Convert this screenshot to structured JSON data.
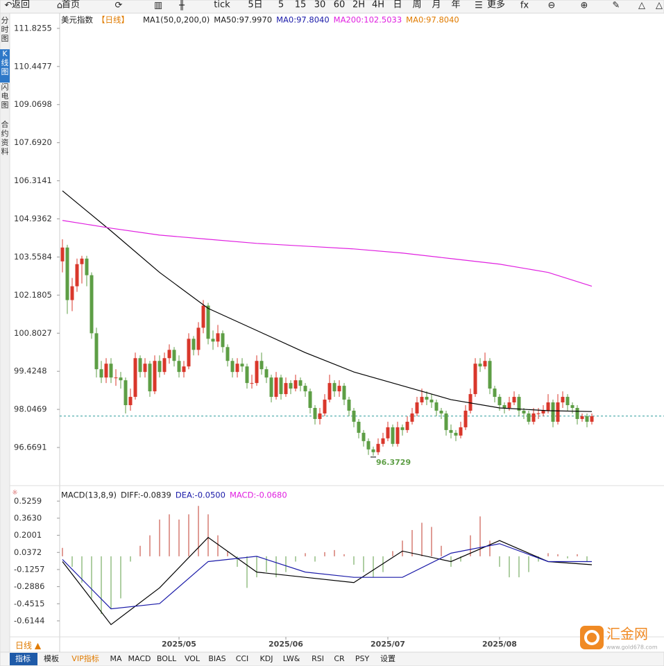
{
  "toolbar": [
    "返回",
    "首页",
    "tick",
    "5日",
    "5",
    "15",
    "30",
    "60",
    "2H",
    "4H",
    "日",
    "周",
    "月",
    "年",
    "更多"
  ],
  "sidebar": [
    "分时图",
    "K线图",
    "闪电图",
    "合约资料"
  ],
  "bottom_tabs": [
    "指标",
    "模板",
    "VIP指标",
    "MA",
    "MACD",
    "BOLL",
    "VOL",
    "BIAS",
    "CCI",
    "KDJ",
    "LW&",
    "RSI",
    "CR",
    "PSY",
    "设置"
  ],
  "period_switch": "日线 ▲",
  "logo": {
    "name": "汇金网",
    "url": "www.gold678.com"
  },
  "chart_data": [
    {
      "type": "candlestick",
      "title": "美元指数",
      "period": "【日线】",
      "indicator": "MA1(50,0,200,0)",
      "legend_texts": [
        "MA50:97.9970",
        "MA0:97.8040",
        "MA200:102.5033",
        "MA0:97.8040"
      ],
      "ylim": [
        95.29,
        112.35
      ],
      "yticks": [
        111.8255,
        110.4477,
        109.0698,
        {
          "value": 107.692,
          "label": "107.6920"
        },
        106.3141,
        104.9362,
        103.5584,
        102.1805,
        100.8027,
        99.4248,
        98.0469,
        96.6691
      ],
      "xlim": [
        -0.5,
        117
      ],
      "xticks": [
        {
          "value": 24,
          "label": "2025/05"
        },
        {
          "value": 46,
          "label": "2025/06"
        },
        {
          "value": 67,
          "label": "2025/07"
        },
        {
          "value": 90,
          "label": "2025/08"
        }
      ],
      "up_color": "#d9372b",
      "down_color": "#5d9e45",
      "candles": [
        [
          103.4,
          104.2,
          103.0,
          103.9
        ],
        [
          103.9,
          104.0,
          101.5,
          102.0
        ],
        [
          102.0,
          102.8,
          101.6,
          102.5
        ],
        [
          102.5,
          103.5,
          102.3,
          103.3
        ],
        [
          103.3,
          103.6,
          102.6,
          103.5
        ],
        [
          103.5,
          103.6,
          102.5,
          102.9
        ],
        [
          102.9,
          103.0,
          100.6,
          100.8
        ],
        [
          100.8,
          101.0,
          99.2,
          99.5
        ],
        [
          99.5,
          99.8,
          99.0,
          99.2
        ],
        [
          99.2,
          99.9,
          99.0,
          99.7
        ],
        [
          99.7,
          99.9,
          99.0,
          99.2
        ],
        [
          99.2,
          99.5,
          98.9,
          99.2
        ],
        [
          99.2,
          99.4,
          98.8,
          99.1
        ],
        [
          99.1,
          99.2,
          97.9,
          98.2
        ],
        [
          98.2,
          98.8,
          98.0,
          98.5
        ],
        [
          98.5,
          100.1,
          98.4,
          99.9
        ],
        [
          99.9,
          100.0,
          99.2,
          99.4
        ],
        [
          99.4,
          99.9,
          99.2,
          99.7
        ],
        [
          99.7,
          99.8,
          98.5,
          98.7
        ],
        [
          98.7,
          100.0,
          98.6,
          99.8
        ],
        [
          99.8,
          100.0,
          99.2,
          99.4
        ],
        [
          99.4,
          100.1,
          99.3,
          99.9
        ],
        [
          99.9,
          100.4,
          99.7,
          100.2
        ],
        [
          100.2,
          100.3,
          99.6,
          99.8
        ],
        [
          99.8,
          100.0,
          99.2,
          99.4
        ],
        [
          99.4,
          99.8,
          99.2,
          99.6
        ],
        [
          99.6,
          100.8,
          99.5,
          100.6
        ],
        [
          100.6,
          100.7,
          100.0,
          100.2
        ],
        [
          100.2,
          101.2,
          100.0,
          101.0
        ],
        [
          101.0,
          102.0,
          100.8,
          101.8
        ],
        [
          101.8,
          101.9,
          100.4,
          100.6
        ],
        [
          100.6,
          100.9,
          100.2,
          100.5
        ],
        [
          100.5,
          101.1,
          100.3,
          100.8
        ],
        [
          100.8,
          100.9,
          100.1,
          100.3
        ],
        [
          100.3,
          100.4,
          99.6,
          99.8
        ],
        [
          99.8,
          99.9,
          99.2,
          99.4
        ],
        [
          99.4,
          99.9,
          99.2,
          99.7
        ],
        [
          99.7,
          99.9,
          99.4,
          99.6
        ],
        [
          99.6,
          99.7,
          98.8,
          99.0
        ],
        [
          99.0,
          99.3,
          98.8,
          99.0
        ],
        [
          99.0,
          100.0,
          98.9,
          99.8
        ],
        [
          99.8,
          100.1,
          99.3,
          99.5
        ],
        [
          99.5,
          99.6,
          99.0,
          99.2
        ],
        [
          99.2,
          99.3,
          98.3,
          98.5
        ],
        [
          98.5,
          99.4,
          98.4,
          99.2
        ],
        [
          99.2,
          99.3,
          98.4,
          98.6
        ],
        [
          98.6,
          99.2,
          98.5,
          99.0
        ],
        [
          99.0,
          99.1,
          98.6,
          98.8
        ],
        [
          98.8,
          99.3,
          98.7,
          99.1
        ],
        [
          99.1,
          99.2,
          98.7,
          98.9
        ],
        [
          98.9,
          99.0,
          98.5,
          98.7
        ],
        [
          98.7,
          98.8,
          97.9,
          98.1
        ],
        [
          98.1,
          98.2,
          97.5,
          97.7
        ],
        [
          97.7,
          98.1,
          97.5,
          97.9
        ],
        [
          97.9,
          98.6,
          97.8,
          98.4
        ],
        [
          98.4,
          99.3,
          98.3,
          99.0
        ],
        [
          99.0,
          99.1,
          98.5,
          98.7
        ],
        [
          98.7,
          99.1,
          98.5,
          98.9
        ],
        [
          98.9,
          99.0,
          98.2,
          98.4
        ],
        [
          98.4,
          98.5,
          97.8,
          98.0
        ],
        [
          98.0,
          98.1,
          97.4,
          97.6
        ],
        [
          97.6,
          97.7,
          97.0,
          97.2
        ],
        [
          97.2,
          97.3,
          96.7,
          96.9
        ],
        [
          96.9,
          97.0,
          96.4,
          96.6
        ],
        [
          96.6,
          96.7,
          96.3729,
          96.5
        ],
        [
          96.5,
          97.0,
          96.4,
          96.8
        ],
        [
          96.8,
          97.2,
          96.7,
          97.0
        ],
        [
          97.0,
          97.6,
          96.9,
          97.4
        ],
        [
          97.4,
          97.5,
          96.7,
          96.8
        ],
        [
          96.8,
          97.6,
          96.7,
          97.4
        ],
        [
          97.4,
          97.5,
          97.1,
          97.3
        ],
        [
          97.3,
          97.8,
          97.2,
          97.6
        ],
        [
          97.6,
          98.1,
          97.5,
          97.9
        ],
        [
          97.9,
          98.5,
          97.8,
          98.3
        ],
        [
          98.3,
          98.8,
          98.2,
          98.5
        ],
        [
          98.5,
          98.7,
          98.2,
          98.4
        ],
        [
          98.4,
          98.6,
          98.1,
          98.3
        ],
        [
          98.3,
          98.4,
          97.8,
          98.0
        ],
        [
          98.0,
          98.1,
          97.7,
          97.9
        ],
        [
          97.9,
          98.0,
          97.1,
          97.3
        ],
        [
          97.3,
          97.5,
          97.0,
          97.2
        ],
        [
          97.2,
          97.3,
          96.9,
          97.1
        ],
        [
          97.1,
          97.6,
          97.0,
          97.4
        ],
        [
          97.4,
          98.2,
          97.3,
          98.0
        ],
        [
          98.0,
          98.8,
          97.9,
          98.6
        ],
        [
          98.6,
          99.9,
          98.5,
          99.7
        ],
        [
          99.7,
          99.9,
          99.4,
          99.6
        ],
        [
          99.6,
          100.1,
          99.5,
          99.8
        ],
        [
          99.8,
          99.9,
          98.6,
          98.8
        ],
        [
          98.8,
          98.9,
          98.3,
          98.5
        ],
        [
          98.5,
          98.6,
          98.0,
          98.2
        ],
        [
          98.2,
          98.3,
          97.9,
          98.1
        ],
        [
          98.1,
          98.5,
          98.0,
          98.3
        ],
        [
          98.3,
          98.7,
          98.2,
          98.5
        ],
        [
          98.5,
          98.6,
          97.8,
          98.0
        ],
        [
          98.0,
          98.1,
          97.7,
          97.9
        ],
        [
          97.9,
          98.0,
          97.5,
          97.6
        ],
        [
          97.6,
          98.1,
          97.5,
          97.9
        ],
        [
          97.9,
          98.1,
          97.7,
          97.9
        ],
        [
          97.9,
          98.2,
          97.8,
          98.0
        ],
        [
          98.0,
          98.6,
          97.9,
          98.3
        ],
        [
          98.3,
          98.4,
          97.4,
          97.6
        ],
        [
          97.6,
          98.6,
          97.5,
          98.3
        ],
        [
          98.3,
          98.7,
          98.1,
          98.5
        ],
        [
          98.5,
          98.6,
          98.0,
          98.2
        ],
        [
          98.2,
          98.3,
          97.9,
          98.1
        ],
        [
          98.1,
          98.2,
          97.5,
          97.7
        ],
        [
          97.7,
          97.9,
          97.6,
          97.8
        ],
        [
          97.8,
          97.9,
          97.4,
          97.6
        ],
        [
          97.6,
          97.9,
          97.5,
          97.8
        ]
      ],
      "low_label": 96.3729,
      "last_price": 97.804,
      "line_x": [
        0,
        10,
        20,
        30,
        40,
        50,
        60,
        70,
        80,
        90,
        100,
        109
      ],
      "series": [
        {
          "name": "MA50",
          "color": "#000000",
          "values": [
            105.95,
            104.5,
            103.0,
            101.7,
            100.9,
            100.1,
            99.4,
            98.9,
            98.4,
            98.1,
            98.0,
            97.97
          ]
        },
        {
          "name": "MA200",
          "color": "#e020e0",
          "values": [
            104.88,
            104.6,
            104.35,
            104.2,
            104.05,
            103.95,
            103.85,
            103.7,
            103.5,
            103.3,
            103.0,
            102.5
          ]
        }
      ]
    },
    {
      "type": "macd",
      "title": "MACD(13,8,9)",
      "legend_texts": [
        "DIFF:-0.0839",
        "DEA:-0.0500",
        "MACD:-0.0680"
      ],
      "ylim": [
        -0.78,
        0.64
      ],
      "yticks": [
        0.5259,
        {
          "value": 0.363,
          "label": "0.3630"
        },
        0.2001,
        0.0372,
        -0.1257,
        -0.2886,
        -0.4515,
        -0.6144
      ],
      "line_x": [
        0,
        10,
        20,
        30,
        40,
        50,
        60,
        70,
        80,
        90,
        100,
        109
      ],
      "series": [
        {
          "name": "DIFF",
          "color": "#000000",
          "values": [
            -0.05,
            -0.65,
            -0.3,
            0.18,
            -0.15,
            -0.2,
            -0.25,
            0.05,
            -0.05,
            0.15,
            -0.05,
            -0.08
          ]
        },
        {
          "name": "DEA",
          "color": "#1a1aa8",
          "values": [
            -0.03,
            -0.5,
            -0.45,
            -0.05,
            0.0,
            -0.15,
            -0.2,
            -0.2,
            0.03,
            0.12,
            -0.05,
            -0.05
          ]
        }
      ],
      "hist_x": [
        0,
        2,
        4,
        6,
        8,
        10,
        12,
        14,
        16,
        18,
        20,
        22,
        24,
        26,
        28,
        30,
        32,
        34,
        36,
        38,
        40,
        42,
        44,
        46,
        48,
        50,
        52,
        54,
        56,
        58,
        60,
        62,
        64,
        66,
        68,
        70,
        72,
        74,
        76,
        78,
        80,
        82,
        84,
        86,
        88,
        90,
        92,
        94,
        96,
        98,
        100,
        102,
        104,
        106,
        108
      ],
      "hist": [
        0.08,
        -0.1,
        -0.25,
        -0.4,
        -0.55,
        -0.5,
        -0.4,
        -0.05,
        0.1,
        0.2,
        0.35,
        0.4,
        0.35,
        0.4,
        0.48,
        0.4,
        0.2,
        0.05,
        -0.1,
        -0.3,
        -0.2,
        -0.15,
        -0.2,
        -0.15,
        -0.05,
        0.03,
        -0.05,
        0.04,
        0.06,
        0.02,
        -0.08,
        -0.15,
        -0.2,
        -0.15,
        0.05,
        0.15,
        0.25,
        0.32,
        0.28,
        0.1,
        -0.1,
        -0.05,
        0.2,
        0.38,
        0.15,
        -0.1,
        -0.2,
        -0.2,
        -0.15,
        -0.05,
        0.03,
        0.02,
        -0.02,
        0.02,
        -0.05
      ],
      "up_color": "#c0392b",
      "down_color": "#5d9e45"
    }
  ]
}
